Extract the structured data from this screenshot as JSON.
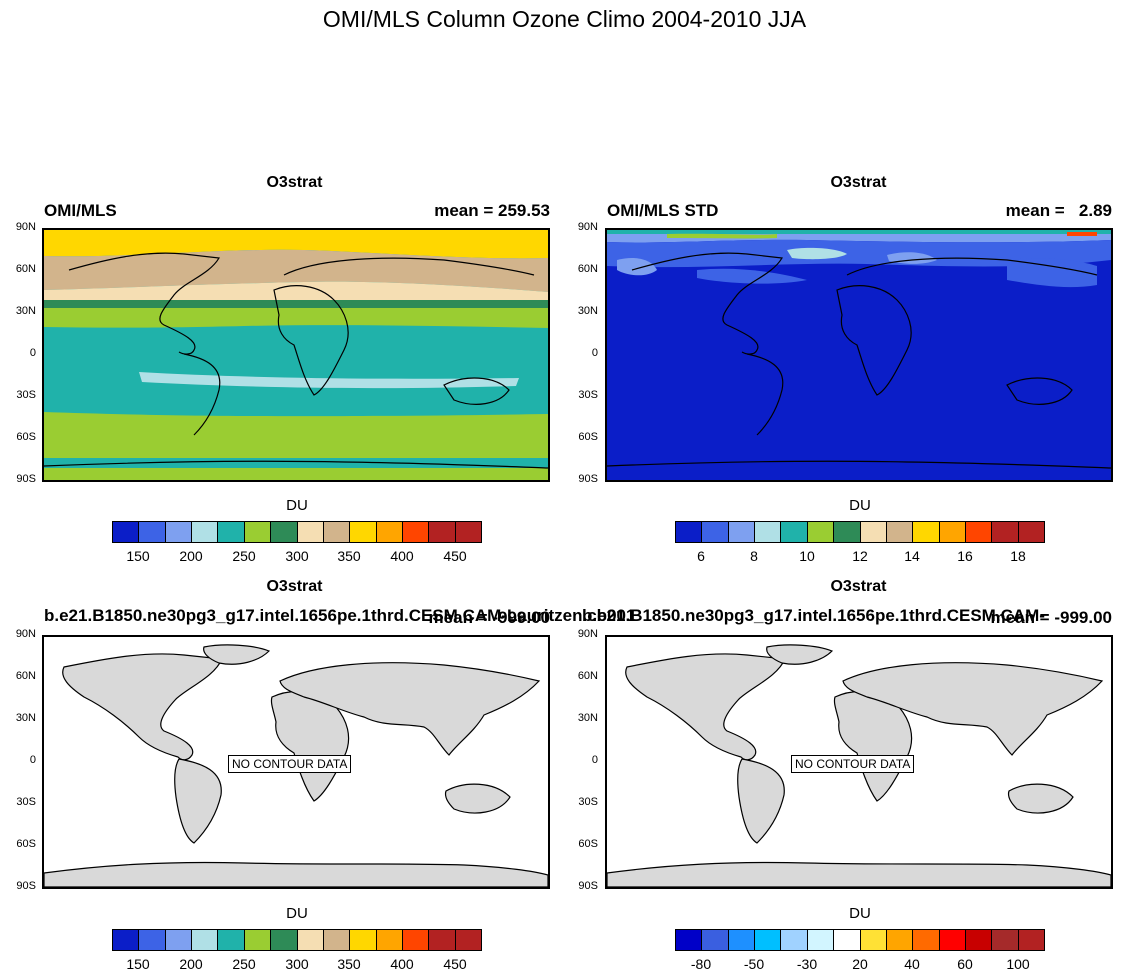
{
  "figure": {
    "title": "OMI/MLS Column Ozone Climo 2004-2010 JJA"
  },
  "lat_labels": [
    "90N",
    "60N",
    "30N",
    "0",
    "30S",
    "60S",
    "90S"
  ],
  "panels": [
    {
      "title": "O3strat",
      "left_label": "OMI/MLS",
      "right_label": "mean = 259.53",
      "colorbar_title": "DU",
      "colorbar_colors": [
        "#0b1ec8",
        "#3d63e6",
        "#7ea0f0",
        "#b0e0e6",
        "#20b2aa",
        "#9acd32",
        "#2e8b57",
        "#f5deb3",
        "#d2b48c",
        "#ffd700",
        "#ffa500",
        "#ff4500",
        "#b22222",
        "#b22222"
      ],
      "colorbar_labels": [
        "150",
        "200",
        "250",
        "300",
        "350",
        "400",
        "450"
      ]
    },
    {
      "title": "O3strat",
      "left_label": "OMI/MLS STD",
      "right_label": "mean =   2.89",
      "colorbar_title": "DU",
      "colorbar_colors": [
        "#0b1ec8",
        "#3d63e6",
        "#7ea0f0",
        "#b0e0e6",
        "#20b2aa",
        "#9acd32",
        "#2e8b57",
        "#f5deb3",
        "#d2b48c",
        "#ffd700",
        "#ffa500",
        "#ff4500",
        "#b22222",
        "#b22222"
      ],
      "colorbar_labels": [
        "6",
        "8",
        "10",
        "12",
        "14",
        "16",
        "18"
      ]
    },
    {
      "title": "O3strat",
      "left_label": "b.e21.B1850.ne30pg3_g17.intel.1656pe.1thrd.CESM.CAM-Lauritzen.cb001",
      "right_label": "mean = -999.00",
      "no_data": "NO CONTOUR DATA",
      "colorbar_title": "DU",
      "colorbar_colors": [
        "#0b1ec8",
        "#3d63e6",
        "#7ea0f0",
        "#b0e0e6",
        "#20b2aa",
        "#9acd32",
        "#2e8b57",
        "#f5deb3",
        "#d2b48c",
        "#ffd700",
        "#ffa500",
        "#ff4500",
        "#b22222",
        "#b22222"
      ],
      "colorbar_labels": [
        "150",
        "200",
        "250",
        "300",
        "350",
        "400",
        "450"
      ]
    },
    {
      "title": "O3strat",
      "left_label": "b.e21.B1850.ne30pg3_g17.intel.1656pe.1thrd.CESM.CAM-",
      "right_label": "mean = -999.00",
      "no_data": "NO CONTOUR DATA",
      "colorbar_title": "DU",
      "colorbar_colors": [
        "#0000c8",
        "#3a5fe0",
        "#1e90ff",
        "#00bfff",
        "#a0d2ff",
        "#d2f5ff",
        "#ffffff",
        "#ffe135",
        "#ffa500",
        "#ff6a00",
        "#ff0000",
        "#c80000",
        "#a52a2a",
        "#b22222"
      ],
      "colorbar_labels": [
        "-80",
        "-50",
        "-30",
        "20",
        "40",
        "60",
        "100"
      ]
    }
  ]
}
